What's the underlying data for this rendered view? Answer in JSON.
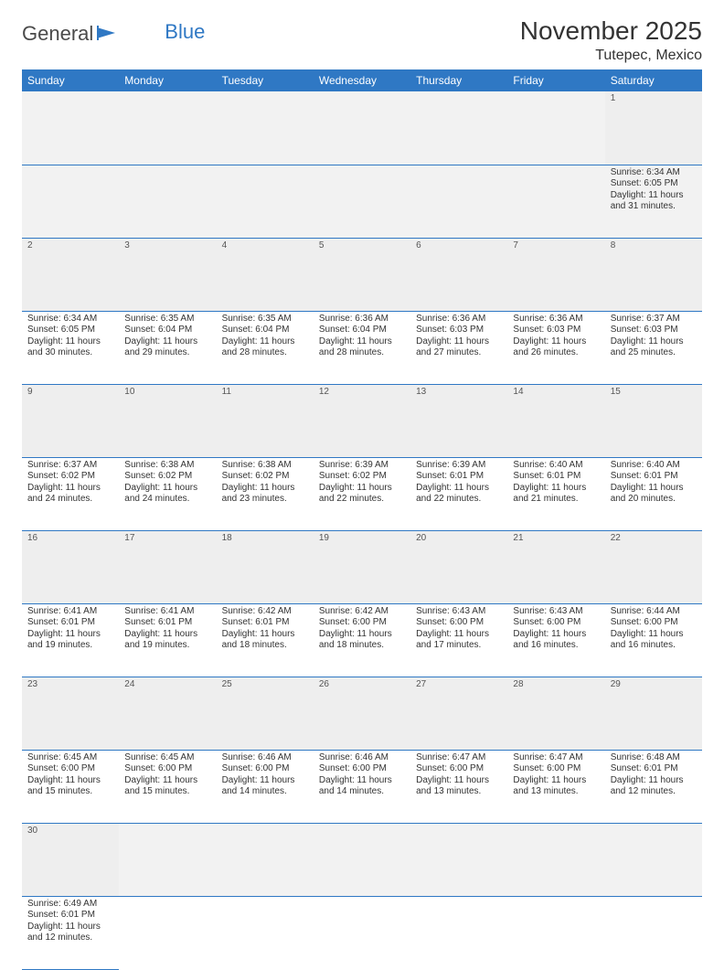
{
  "logo": {
    "part1": "General",
    "part2": "Blue"
  },
  "title": "November 2025",
  "subtitle": "Tutepec, Mexico",
  "colors": {
    "header_bg": "#2f78c4",
    "header_text": "#ffffff",
    "stripe": "#eeeeee",
    "rule": "#2f78c4"
  },
  "day_headers": [
    "Sunday",
    "Monday",
    "Tuesday",
    "Wednesday",
    "Thursday",
    "Friday",
    "Saturday"
  ],
  "weeks": [
    [
      null,
      null,
      null,
      null,
      null,
      null,
      {
        "n": "1",
        "sr": "Sunrise: 6:34 AM",
        "ss": "Sunset: 6:05 PM",
        "d1": "Daylight: 11 hours",
        "d2": "and 31 minutes."
      }
    ],
    [
      {
        "n": "2",
        "sr": "Sunrise: 6:34 AM",
        "ss": "Sunset: 6:05 PM",
        "d1": "Daylight: 11 hours",
        "d2": "and 30 minutes."
      },
      {
        "n": "3",
        "sr": "Sunrise: 6:35 AM",
        "ss": "Sunset: 6:04 PM",
        "d1": "Daylight: 11 hours",
        "d2": "and 29 minutes."
      },
      {
        "n": "4",
        "sr": "Sunrise: 6:35 AM",
        "ss": "Sunset: 6:04 PM",
        "d1": "Daylight: 11 hours",
        "d2": "and 28 minutes."
      },
      {
        "n": "5",
        "sr": "Sunrise: 6:36 AM",
        "ss": "Sunset: 6:04 PM",
        "d1": "Daylight: 11 hours",
        "d2": "and 28 minutes."
      },
      {
        "n": "6",
        "sr": "Sunrise: 6:36 AM",
        "ss": "Sunset: 6:03 PM",
        "d1": "Daylight: 11 hours",
        "d2": "and 27 minutes."
      },
      {
        "n": "7",
        "sr": "Sunrise: 6:36 AM",
        "ss": "Sunset: 6:03 PM",
        "d1": "Daylight: 11 hours",
        "d2": "and 26 minutes."
      },
      {
        "n": "8",
        "sr": "Sunrise: 6:37 AM",
        "ss": "Sunset: 6:03 PM",
        "d1": "Daylight: 11 hours",
        "d2": "and 25 minutes."
      }
    ],
    [
      {
        "n": "9",
        "sr": "Sunrise: 6:37 AM",
        "ss": "Sunset: 6:02 PM",
        "d1": "Daylight: 11 hours",
        "d2": "and 24 minutes."
      },
      {
        "n": "10",
        "sr": "Sunrise: 6:38 AM",
        "ss": "Sunset: 6:02 PM",
        "d1": "Daylight: 11 hours",
        "d2": "and 24 minutes."
      },
      {
        "n": "11",
        "sr": "Sunrise: 6:38 AM",
        "ss": "Sunset: 6:02 PM",
        "d1": "Daylight: 11 hours",
        "d2": "and 23 minutes."
      },
      {
        "n": "12",
        "sr": "Sunrise: 6:39 AM",
        "ss": "Sunset: 6:02 PM",
        "d1": "Daylight: 11 hours",
        "d2": "and 22 minutes."
      },
      {
        "n": "13",
        "sr": "Sunrise: 6:39 AM",
        "ss": "Sunset: 6:01 PM",
        "d1": "Daylight: 11 hours",
        "d2": "and 22 minutes."
      },
      {
        "n": "14",
        "sr": "Sunrise: 6:40 AM",
        "ss": "Sunset: 6:01 PM",
        "d1": "Daylight: 11 hours",
        "d2": "and 21 minutes."
      },
      {
        "n": "15",
        "sr": "Sunrise: 6:40 AM",
        "ss": "Sunset: 6:01 PM",
        "d1": "Daylight: 11 hours",
        "d2": "and 20 minutes."
      }
    ],
    [
      {
        "n": "16",
        "sr": "Sunrise: 6:41 AM",
        "ss": "Sunset: 6:01 PM",
        "d1": "Daylight: 11 hours",
        "d2": "and 19 minutes."
      },
      {
        "n": "17",
        "sr": "Sunrise: 6:41 AM",
        "ss": "Sunset: 6:01 PM",
        "d1": "Daylight: 11 hours",
        "d2": "and 19 minutes."
      },
      {
        "n": "18",
        "sr": "Sunrise: 6:42 AM",
        "ss": "Sunset: 6:01 PM",
        "d1": "Daylight: 11 hours",
        "d2": "and 18 minutes."
      },
      {
        "n": "19",
        "sr": "Sunrise: 6:42 AM",
        "ss": "Sunset: 6:00 PM",
        "d1": "Daylight: 11 hours",
        "d2": "and 18 minutes."
      },
      {
        "n": "20",
        "sr": "Sunrise: 6:43 AM",
        "ss": "Sunset: 6:00 PM",
        "d1": "Daylight: 11 hours",
        "d2": "and 17 minutes."
      },
      {
        "n": "21",
        "sr": "Sunrise: 6:43 AM",
        "ss": "Sunset: 6:00 PM",
        "d1": "Daylight: 11 hours",
        "d2": "and 16 minutes."
      },
      {
        "n": "22",
        "sr": "Sunrise: 6:44 AM",
        "ss": "Sunset: 6:00 PM",
        "d1": "Daylight: 11 hours",
        "d2": "and 16 minutes."
      }
    ],
    [
      {
        "n": "23",
        "sr": "Sunrise: 6:45 AM",
        "ss": "Sunset: 6:00 PM",
        "d1": "Daylight: 11 hours",
        "d2": "and 15 minutes."
      },
      {
        "n": "24",
        "sr": "Sunrise: 6:45 AM",
        "ss": "Sunset: 6:00 PM",
        "d1": "Daylight: 11 hours",
        "d2": "and 15 minutes."
      },
      {
        "n": "25",
        "sr": "Sunrise: 6:46 AM",
        "ss": "Sunset: 6:00 PM",
        "d1": "Daylight: 11 hours",
        "d2": "and 14 minutes."
      },
      {
        "n": "26",
        "sr": "Sunrise: 6:46 AM",
        "ss": "Sunset: 6:00 PM",
        "d1": "Daylight: 11 hours",
        "d2": "and 14 minutes."
      },
      {
        "n": "27",
        "sr": "Sunrise: 6:47 AM",
        "ss": "Sunset: 6:00 PM",
        "d1": "Daylight: 11 hours",
        "d2": "and 13 minutes."
      },
      {
        "n": "28",
        "sr": "Sunrise: 6:47 AM",
        "ss": "Sunset: 6:00 PM",
        "d1": "Daylight: 11 hours",
        "d2": "and 13 minutes."
      },
      {
        "n": "29",
        "sr": "Sunrise: 6:48 AM",
        "ss": "Sunset: 6:01 PM",
        "d1": "Daylight: 11 hours",
        "d2": "and 12 minutes."
      }
    ],
    [
      {
        "n": "30",
        "sr": "Sunrise: 6:49 AM",
        "ss": "Sunset: 6:01 PM",
        "d1": "Daylight: 11 hours",
        "d2": "and 12 minutes."
      },
      null,
      null,
      null,
      null,
      null,
      null
    ]
  ]
}
